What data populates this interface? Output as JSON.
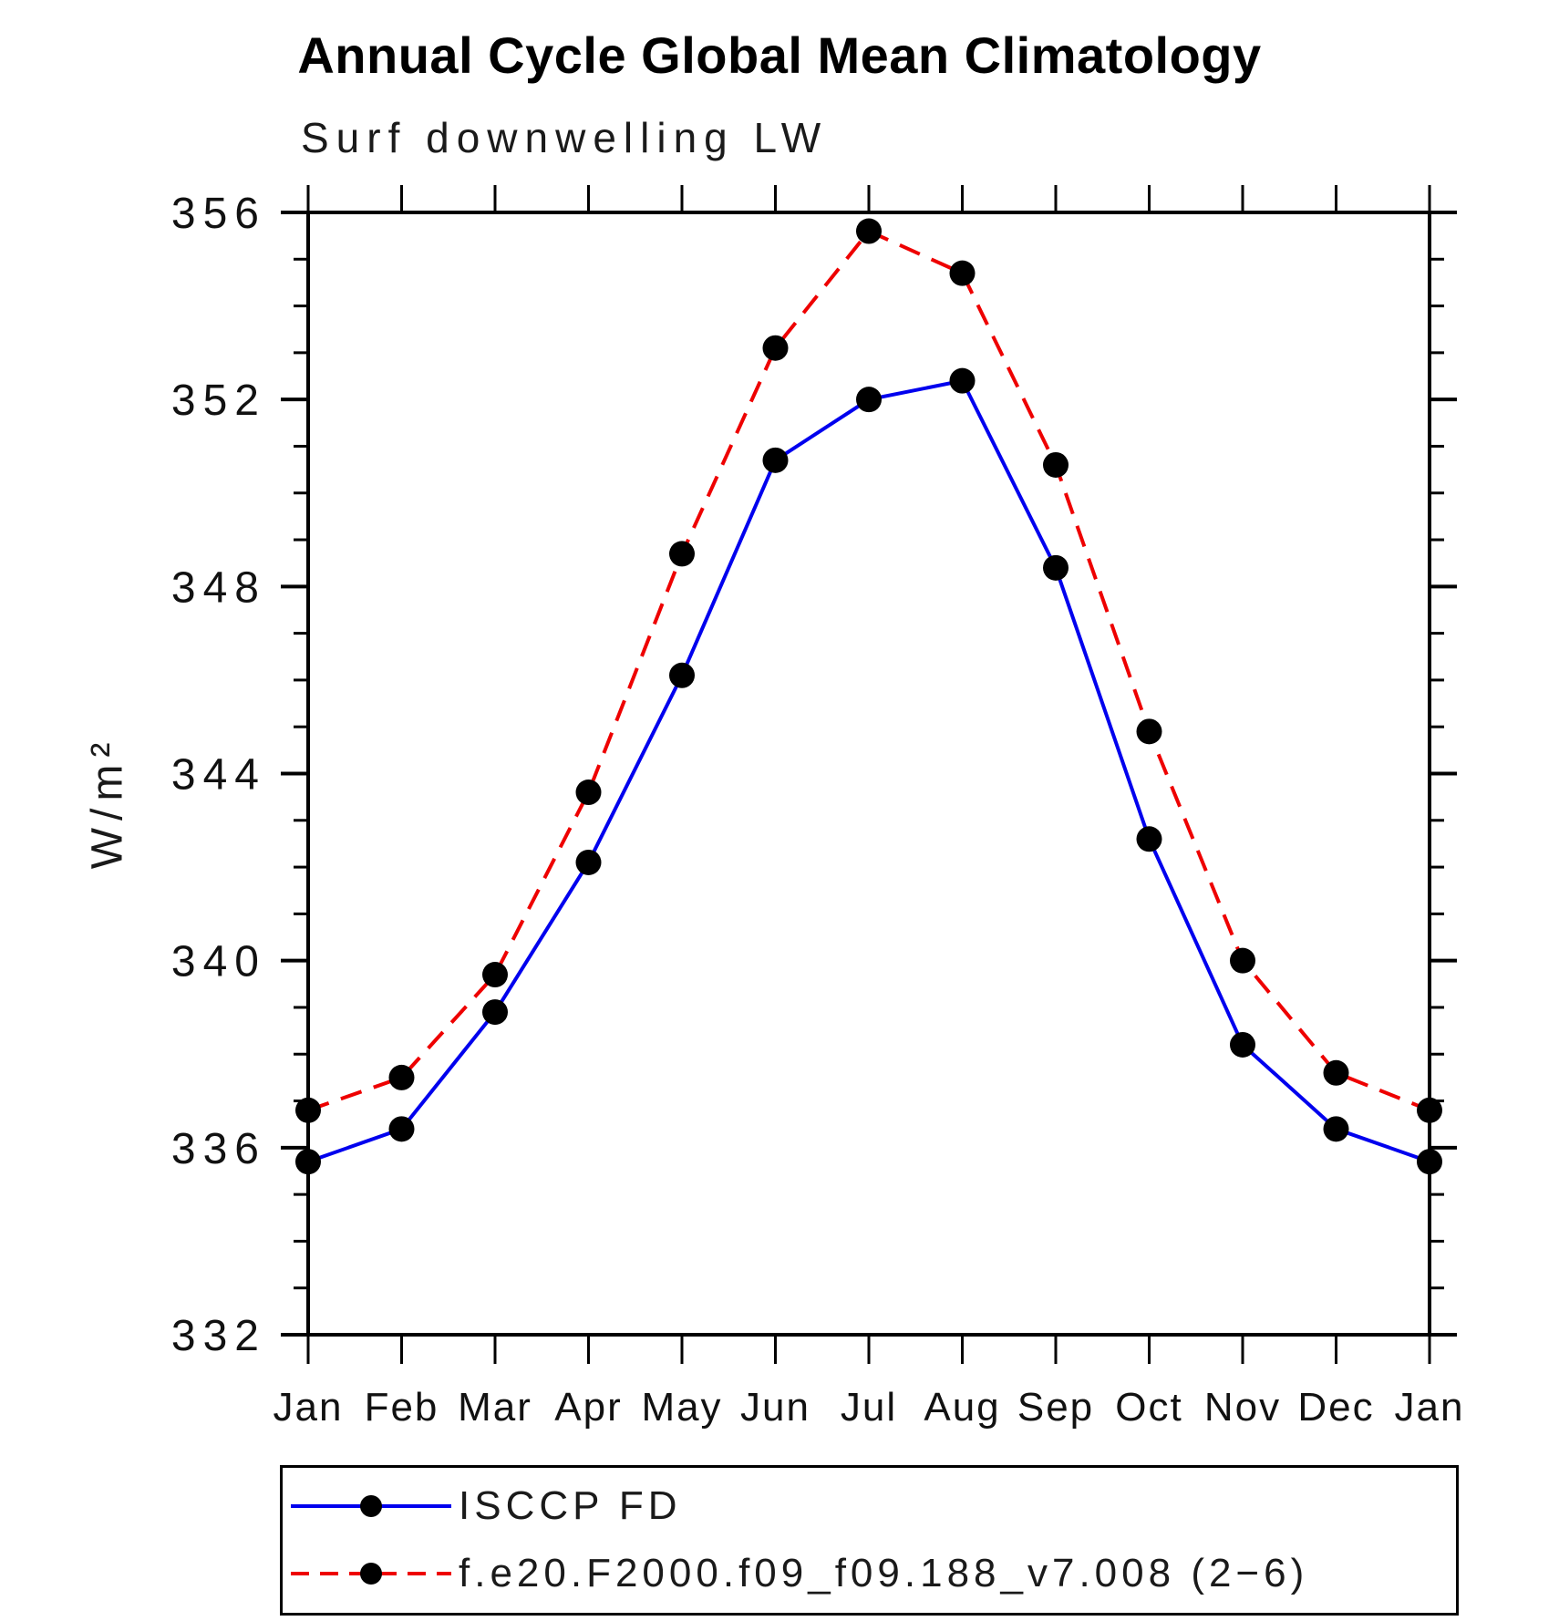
{
  "page": {
    "background": "#ffffff"
  },
  "chart_data": {
    "type": "line",
    "title": "Annual Cycle Global Mean Climatology",
    "subtitle": "Surf downwelling LW",
    "ylabel": "W/m²",
    "x_categories": [
      "Jan",
      "Feb",
      "Mar",
      "Apr",
      "May",
      "Jun",
      "Jul",
      "Aug",
      "Sep",
      "Oct",
      "Nov",
      "Dec",
      "Jan"
    ],
    "ylim": [
      332,
      356
    ],
    "yticks": [
      332,
      336,
      340,
      344,
      348,
      352,
      356
    ],
    "y_minor_step": 1,
    "y_major_step": 4,
    "grid": "off",
    "legend_position": "bottom-left-box",
    "axis_color": "#000000",
    "series": [
      {
        "name": "ISCCP FD",
        "color": "#0000ee",
        "style": "solid",
        "marker": "circle",
        "marker_color": "#000000",
        "values": [
          335.7,
          336.4,
          338.9,
          342.1,
          346.1,
          350.7,
          352.0,
          352.4,
          348.4,
          342.6,
          338.2,
          336.4,
          335.7
        ]
      },
      {
        "name": "f.e20.F2000.f09_f09.188_v7.008 (2−6)",
        "color": "#ee0000",
        "style": "dashed",
        "marker": "circle",
        "marker_color": "#000000",
        "values": [
          336.8,
          337.5,
          339.7,
          343.6,
          348.7,
          353.1,
          355.6,
          354.7,
          350.6,
          344.9,
          340.0,
          337.6,
          336.8
        ]
      }
    ]
  }
}
